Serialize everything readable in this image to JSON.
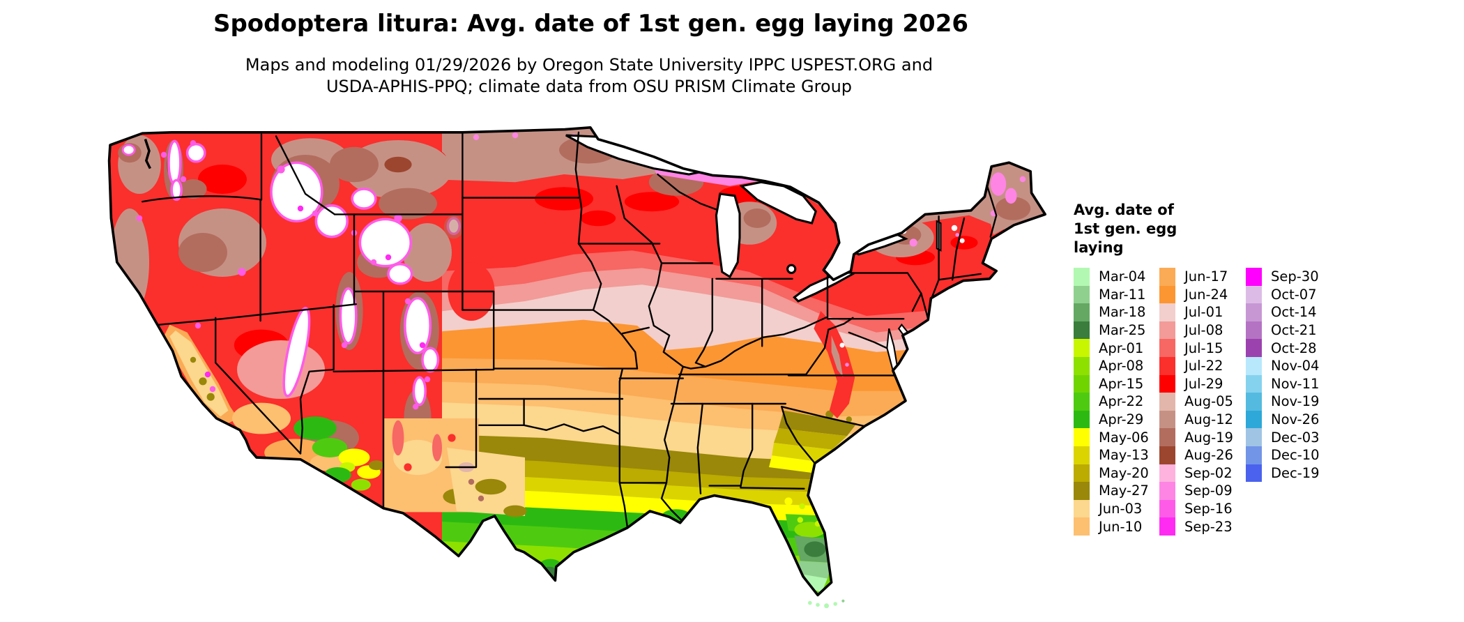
{
  "title": "Spodoptera litura: Avg. date of 1st gen. egg laying 2026",
  "subtitle": {
    "line1": "Maps and modeling 01/29/2026 by Oregon State University IPPC USPEST.ORG and",
    "line2": "USDA-APHIS-PPQ; climate data from OSU PRISM Climate Group"
  },
  "map": {
    "type": "choropleth-raster",
    "region": "Contiguous United States",
    "no_data_color": "#ffffff",
    "border_color": "#000000"
  },
  "legend": {
    "title_lines": [
      "Avg. date of",
      "1st gen. egg",
      "laying"
    ],
    "columns": [
      [
        {
          "label": "Mar-04",
          "color": "#b2f8b2"
        },
        {
          "label": "Mar-11",
          "color": "#8fd08f"
        },
        {
          "label": "Mar-18",
          "color": "#64a864"
        },
        {
          "label": "Mar-25",
          "color": "#3a7d3c"
        },
        {
          "label": "Apr-01",
          "color": "#c8f500"
        },
        {
          "label": "Apr-08",
          "color": "#8ee000"
        },
        {
          "label": "Apr-15",
          "color": "#70d400"
        },
        {
          "label": "Apr-22",
          "color": "#4ecb10"
        },
        {
          "label": "Apr-29",
          "color": "#2cba12"
        },
        {
          "label": "May-06",
          "color": "#ffff00"
        },
        {
          "label": "May-13",
          "color": "#dcd400"
        },
        {
          "label": "May-20",
          "color": "#bcab00"
        },
        {
          "label": "May-27",
          "color": "#998809"
        },
        {
          "label": "Jun-03",
          "color": "#fcd78e"
        },
        {
          "label": "Jun-10",
          "color": "#fdbf70"
        }
      ],
      [
        {
          "label": "Jun-17",
          "color": "#fbab55"
        },
        {
          "label": "Jun-24",
          "color": "#fc9632"
        },
        {
          "label": "Jul-01",
          "color": "#f2cfcc"
        },
        {
          "label": "Jul-08",
          "color": "#f29b98"
        },
        {
          "label": "Jul-15",
          "color": "#f76763"
        },
        {
          "label": "Jul-22",
          "color": "#fb2f2c"
        },
        {
          "label": "Jul-29",
          "color": "#ff0000"
        },
        {
          "label": "Aug-05",
          "color": "#e2b6ab"
        },
        {
          "label": "Aug-12",
          "color": "#c69185"
        },
        {
          "label": "Aug-19",
          "color": "#b26d5e"
        },
        {
          "label": "Aug-26",
          "color": "#9c4630"
        },
        {
          "label": "Sep-02",
          "color": "#feb3de"
        },
        {
          "label": "Sep-09",
          "color": "#fe85e4"
        },
        {
          "label": "Sep-16",
          "color": "#fe5ce8"
        },
        {
          "label": "Sep-23",
          "color": "#ff2bf2"
        }
      ],
      [
        {
          "label": "Sep-30",
          "color": "#ff00fe"
        },
        {
          "label": "Oct-07",
          "color": "#dcbce6"
        },
        {
          "label": "Oct-14",
          "color": "#c797d4"
        },
        {
          "label": "Oct-21",
          "color": "#b573c4"
        },
        {
          "label": "Oct-28",
          "color": "#9c42ae"
        },
        {
          "label": "Nov-04",
          "color": "#b8e8fc"
        },
        {
          "label": "Nov-11",
          "color": "#85d2ee"
        },
        {
          "label": "Nov-19",
          "color": "#55badf"
        },
        {
          "label": "Nov-26",
          "color": "#2da8d8"
        },
        {
          "label": "Dec-03",
          "color": "#a0c4e4"
        },
        {
          "label": "Dec-10",
          "color": "#7295e8"
        },
        {
          "label": "Dec-19",
          "color": "#4a62ed"
        }
      ]
    ],
    "column_offsets": [
      0,
      123,
      247
    ]
  }
}
